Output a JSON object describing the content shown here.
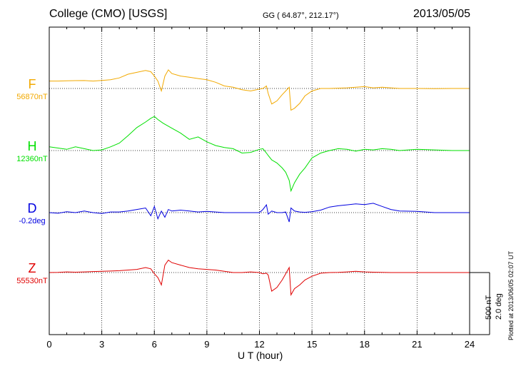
{
  "header": {
    "station": "College (CMO)  [USGS]",
    "coordinates": "GG ( 64.87°, 212.17°)",
    "date": "2013/05/05"
  },
  "footer": {
    "plotted_at": "Plotted at 2013/06/05 02:07 UT"
  },
  "scale": {
    "nt": "500 nT",
    "deg": "2.0 deg"
  },
  "chart_data": {
    "type": "line",
    "xlabel": "U T (hour)",
    "xlim": [
      0,
      24
    ],
    "xticks": [
      "0",
      "3",
      "6",
      "9",
      "12",
      "15",
      "18",
      "21",
      "24"
    ],
    "grid": true,
    "series": [
      {
        "name": "F",
        "baseline_label": "56870nT",
        "color": "#f2a900",
        "unit": "nT",
        "points": [
          [
            0,
            60
          ],
          [
            0.5,
            60
          ],
          [
            1,
            62
          ],
          [
            1.5,
            63
          ],
          [
            2,
            64
          ],
          [
            2.5,
            60
          ],
          [
            3,
            65
          ],
          [
            3.5,
            70
          ],
          [
            4,
            85
          ],
          [
            4.5,
            115
          ],
          [
            5,
            130
          ],
          [
            5.5,
            145
          ],
          [
            5.8,
            135
          ],
          [
            6,
            100
          ],
          [
            6.2,
            60
          ],
          [
            6.4,
            -20
          ],
          [
            6.6,
            100
          ],
          [
            6.8,
            150
          ],
          [
            7,
            120
          ],
          [
            7.5,
            100
          ],
          [
            8,
            90
          ],
          [
            8.5,
            80
          ],
          [
            9,
            70
          ],
          [
            9.5,
            50
          ],
          [
            10,
            20
          ],
          [
            10.5,
            10
          ],
          [
            11,
            -10
          ],
          [
            11.5,
            -20
          ],
          [
            12,
            -5
          ],
          [
            12.2,
            0
          ],
          [
            12.4,
            20
          ],
          [
            12.5,
            -40
          ],
          [
            12.7,
            -125
          ],
          [
            13,
            -100
          ],
          [
            13.3,
            -50
          ],
          [
            13.5,
            -20
          ],
          [
            13.7,
            10
          ],
          [
            13.8,
            -175
          ],
          [
            14,
            -160
          ],
          [
            14.3,
            -120
          ],
          [
            14.6,
            -60
          ],
          [
            15,
            -20
          ],
          [
            15.5,
            0
          ],
          [
            16,
            0
          ],
          [
            17,
            5
          ],
          [
            17.5,
            10
          ],
          [
            18,
            15
          ],
          [
            18.5,
            5
          ],
          [
            19,
            10
          ],
          [
            19.5,
            5
          ],
          [
            20,
            0
          ],
          [
            21,
            0
          ],
          [
            22,
            -2
          ],
          [
            23,
            0
          ],
          [
            24,
            0
          ]
        ]
      },
      {
        "name": "H",
        "baseline_label": "12360nT",
        "color": "#00e000",
        "unit": "nT",
        "points": [
          [
            0,
            30
          ],
          [
            0.5,
            20
          ],
          [
            1,
            10
          ],
          [
            1.5,
            30
          ],
          [
            2,
            15
          ],
          [
            2.5,
            0
          ],
          [
            3,
            5
          ],
          [
            3.5,
            30
          ],
          [
            4,
            60
          ],
          [
            4.5,
            120
          ],
          [
            5,
            185
          ],
          [
            5.5,
            230
          ],
          [
            5.8,
            260
          ],
          [
            6,
            275
          ],
          [
            6.2,
            250
          ],
          [
            6.5,
            220
          ],
          [
            7,
            180
          ],
          [
            7.5,
            140
          ],
          [
            8,
            90
          ],
          [
            8.5,
            110
          ],
          [
            9,
            70
          ],
          [
            9.5,
            40
          ],
          [
            10,
            25
          ],
          [
            10.5,
            15
          ],
          [
            11,
            -20
          ],
          [
            11.5,
            -15
          ],
          [
            12,
            10
          ],
          [
            12.2,
            15
          ],
          [
            12.4,
            -20
          ],
          [
            12.5,
            -40
          ],
          [
            12.7,
            -75
          ],
          [
            13,
            -100
          ],
          [
            13.3,
            -140
          ],
          [
            13.5,
            -175
          ],
          [
            13.7,
            -240
          ],
          [
            13.8,
            -325
          ],
          [
            14,
            -260
          ],
          [
            14.3,
            -190
          ],
          [
            14.6,
            -140
          ],
          [
            15,
            -60
          ],
          [
            15.5,
            -20
          ],
          [
            16,
            0
          ],
          [
            16.5,
            15
          ],
          [
            17,
            10
          ],
          [
            17.5,
            -5
          ],
          [
            18,
            10
          ],
          [
            18.5,
            5
          ],
          [
            19,
            15
          ],
          [
            19.5,
            10
          ],
          [
            20,
            0
          ],
          [
            21,
            10
          ],
          [
            22,
            5
          ],
          [
            23,
            0
          ],
          [
            24,
            0
          ]
        ]
      },
      {
        "name": "D",
        "baseline_label": "-0.2deg",
        "color": "#0000e0",
        "unit": "deg",
        "points": [
          [
            0,
            0
          ],
          [
            0.5,
            -0.02
          ],
          [
            1,
            0.03
          ],
          [
            1.5,
            0
          ],
          [
            2,
            0.05
          ],
          [
            2.5,
            0
          ],
          [
            3,
            -0.03
          ],
          [
            3.5,
            0.02
          ],
          [
            4,
            0.02
          ],
          [
            4.5,
            0.05
          ],
          [
            5,
            0.1
          ],
          [
            5.5,
            0.15
          ],
          [
            5.8,
            -0.1
          ],
          [
            6,
            0.2
          ],
          [
            6.2,
            -0.2
          ],
          [
            6.4,
            0.05
          ],
          [
            6.6,
            -0.15
          ],
          [
            6.8,
            0.1
          ],
          [
            7,
            0.05
          ],
          [
            7.5,
            0.08
          ],
          [
            8,
            0.05
          ],
          [
            8.5,
            0.02
          ],
          [
            9,
            0.04
          ],
          [
            9.5,
            0.02
          ],
          [
            10,
            0
          ],
          [
            10.5,
            0
          ],
          [
            11,
            0
          ],
          [
            11.5,
            0
          ],
          [
            12,
            0
          ],
          [
            12.2,
            0.1
          ],
          [
            12.4,
            0.25
          ],
          [
            12.5,
            -0.05
          ],
          [
            12.7,
            0.05
          ],
          [
            13,
            0
          ],
          [
            13.3,
            0
          ],
          [
            13.5,
            0.02
          ],
          [
            13.7,
            -0.3
          ],
          [
            13.8,
            0.15
          ],
          [
            14,
            0.05
          ],
          [
            14.3,
            0.02
          ],
          [
            14.6,
            0.01
          ],
          [
            15,
            0.03
          ],
          [
            15.5,
            0.08
          ],
          [
            16,
            0.18
          ],
          [
            16.5,
            0.22
          ],
          [
            17,
            0.25
          ],
          [
            17.5,
            0.28
          ],
          [
            18,
            0.26
          ],
          [
            18.5,
            0.3
          ],
          [
            19,
            0.2
          ],
          [
            19.5,
            0.1
          ],
          [
            20,
            0.05
          ],
          [
            21,
            0.04
          ],
          [
            22,
            0
          ],
          [
            23,
            0
          ],
          [
            24,
            0
          ]
        ]
      },
      {
        "name": "Z",
        "baseline_label": "55530nT",
        "color": "#e00000",
        "unit": "nT",
        "points": [
          [
            0,
            0
          ],
          [
            0.5,
            2
          ],
          [
            1,
            5
          ],
          [
            1.5,
            3
          ],
          [
            2,
            5
          ],
          [
            2.5,
            8
          ],
          [
            3,
            10
          ],
          [
            3.5,
            12
          ],
          [
            4,
            15
          ],
          [
            4.5,
            20
          ],
          [
            5,
            25
          ],
          [
            5.5,
            40
          ],
          [
            5.8,
            30
          ],
          [
            6,
            -10
          ],
          [
            6.2,
            -40
          ],
          [
            6.4,
            -100
          ],
          [
            6.6,
            60
          ],
          [
            6.8,
            100
          ],
          [
            7,
            80
          ],
          [
            7.5,
            60
          ],
          [
            8,
            40
          ],
          [
            8.5,
            30
          ],
          [
            9,
            25
          ],
          [
            9.5,
            20
          ],
          [
            10,
            10
          ],
          [
            10.5,
            0
          ],
          [
            11,
            0
          ],
          [
            11.5,
            5
          ],
          [
            12,
            0
          ],
          [
            12.2,
            -10
          ],
          [
            12.4,
            -5
          ],
          [
            12.5,
            -20
          ],
          [
            12.7,
            -150
          ],
          [
            13,
            -120
          ],
          [
            13.3,
            -60
          ],
          [
            13.5,
            -10
          ],
          [
            13.7,
            40
          ],
          [
            13.8,
            -180
          ],
          [
            14,
            -130
          ],
          [
            14.3,
            -100
          ],
          [
            14.6,
            -60
          ],
          [
            15,
            -30
          ],
          [
            15.5,
            -5
          ],
          [
            16,
            0
          ],
          [
            16.5,
            2
          ],
          [
            17,
            5
          ],
          [
            17.5,
            10
          ],
          [
            18,
            5
          ],
          [
            18.5,
            3
          ],
          [
            19,
            2
          ],
          [
            19.5,
            0
          ],
          [
            20,
            0
          ],
          [
            21,
            0
          ],
          [
            22,
            0
          ],
          [
            23,
            0
          ],
          [
            24,
            0
          ]
        ]
      }
    ]
  }
}
